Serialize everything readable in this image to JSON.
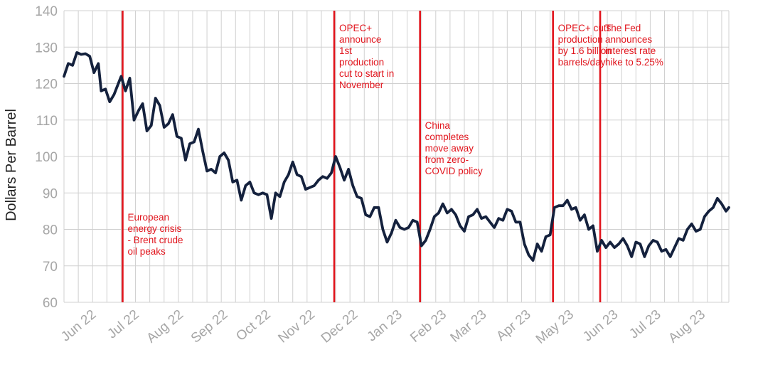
{
  "chart_data": {
    "type": "line",
    "title": "",
    "xlabel": "",
    "ylabel": "Dollars Per Barrel",
    "ylim": [
      60,
      140
    ],
    "yticks": [
      60,
      70,
      80,
      90,
      100,
      110,
      120,
      130,
      140
    ],
    "grid": true,
    "x_range": [
      "2022-05-23",
      "2023-08-31"
    ],
    "x_ticks": [
      {
        "label": "Jun 22",
        "date": "2022-06-15"
      },
      {
        "label": "Jul 22",
        "date": "2022-07-15"
      },
      {
        "label": "Aug 22",
        "date": "2022-08-15"
      },
      {
        "label": "Sep 22",
        "date": "2022-09-15"
      },
      {
        "label": "Oct 22",
        "date": "2022-10-15"
      },
      {
        "label": "Nov 22",
        "date": "2022-11-15"
      },
      {
        "label": "Dec 22",
        "date": "2022-12-15"
      },
      {
        "label": "Jan 23",
        "date": "2023-01-15"
      },
      {
        "label": "Feb 23",
        "date": "2023-02-15"
      },
      {
        "label": "Mar 23",
        "date": "2023-03-15"
      },
      {
        "label": "Apr 23",
        "date": "2023-04-15"
      },
      {
        "label": "May 23",
        "date": "2023-05-15"
      },
      {
        "label": "Jun 23",
        "date": "2023-06-15"
      },
      {
        "label": "Jul 23",
        "date": "2023-07-15"
      },
      {
        "label": "Aug 23",
        "date": "2023-08-15"
      }
    ],
    "series": [
      {
        "color": "#14213d",
        "points": [
          [
            "2022-05-23",
            122.0
          ],
          [
            "2022-05-26",
            125.5
          ],
          [
            "2022-05-29",
            125.0
          ],
          [
            "2022-06-01",
            128.5
          ],
          [
            "2022-06-04",
            128.0
          ],
          [
            "2022-06-07",
            128.2
          ],
          [
            "2022-06-10",
            127.5
          ],
          [
            "2022-06-13",
            123.0
          ],
          [
            "2022-06-16",
            125.5
          ],
          [
            "2022-06-18",
            118.0
          ],
          [
            "2022-06-21",
            118.5
          ],
          [
            "2022-06-24",
            115.0
          ],
          [
            "2022-06-27",
            117.0
          ],
          [
            "2022-06-30",
            120.0
          ],
          [
            "2022-07-02",
            122.0
          ],
          [
            "2022-07-05",
            118.0
          ],
          [
            "2022-07-08",
            121.5
          ],
          [
            "2022-07-11",
            110.0
          ],
          [
            "2022-07-14",
            112.5
          ],
          [
            "2022-07-17",
            114.5
          ],
          [
            "2022-07-20",
            107.0
          ],
          [
            "2022-07-23",
            108.5
          ],
          [
            "2022-07-26",
            116.0
          ],
          [
            "2022-07-29",
            114.0
          ],
          [
            "2022-08-01",
            108.0
          ],
          [
            "2022-08-04",
            109.0
          ],
          [
            "2022-08-07",
            111.5
          ],
          [
            "2022-08-10",
            105.5
          ],
          [
            "2022-08-13",
            105.0
          ],
          [
            "2022-08-16",
            99.0
          ],
          [
            "2022-08-19",
            103.5
          ],
          [
            "2022-08-22",
            104.0
          ],
          [
            "2022-08-25",
            107.5
          ],
          [
            "2022-08-28",
            101.5
          ],
          [
            "2022-08-31",
            96.0
          ],
          [
            "2022-09-03",
            96.5
          ],
          [
            "2022-09-06",
            95.5
          ],
          [
            "2022-09-09",
            100.0
          ],
          [
            "2022-09-12",
            101.0
          ],
          [
            "2022-09-15",
            99.0
          ],
          [
            "2022-09-18",
            93.0
          ],
          [
            "2022-09-21",
            93.5
          ],
          [
            "2022-09-24",
            88.0
          ],
          [
            "2022-09-27",
            92.0
          ],
          [
            "2022-09-30",
            93.0
          ],
          [
            "2022-10-03",
            90.0
          ],
          [
            "2022-10-06",
            89.5
          ],
          [
            "2022-10-09",
            90.0
          ],
          [
            "2022-10-12",
            89.5
          ],
          [
            "2022-10-15",
            83.0
          ],
          [
            "2022-10-18",
            90.0
          ],
          [
            "2022-10-21",
            89.0
          ],
          [
            "2022-10-24",
            93.0
          ],
          [
            "2022-10-27",
            95.0
          ],
          [
            "2022-10-30",
            98.5
          ],
          [
            "2022-11-02",
            95.0
          ],
          [
            "2022-11-05",
            94.5
          ],
          [
            "2022-11-08",
            91.0
          ],
          [
            "2022-11-11",
            91.5
          ],
          [
            "2022-11-14",
            92.0
          ],
          [
            "2022-11-17",
            93.5
          ],
          [
            "2022-11-20",
            94.5
          ],
          [
            "2022-11-23",
            94.0
          ],
          [
            "2022-11-26",
            95.5
          ],
          [
            "2022-11-29",
            100.0
          ],
          [
            "2022-12-02",
            97.0
          ],
          [
            "2022-12-05",
            93.5
          ],
          [
            "2022-12-08",
            96.5
          ],
          [
            "2022-12-11",
            92.0
          ],
          [
            "2022-12-14",
            89.0
          ],
          [
            "2022-12-17",
            88.5
          ],
          [
            "2022-12-20",
            84.0
          ],
          [
            "2022-12-23",
            83.5
          ],
          [
            "2022-12-26",
            86.0
          ],
          [
            "2022-12-29",
            86.0
          ],
          [
            "2023-01-01",
            80.0
          ],
          [
            "2023-01-04",
            76.5
          ],
          [
            "2023-01-07",
            79.0
          ],
          [
            "2023-01-10",
            82.5
          ],
          [
            "2023-01-13",
            80.5
          ],
          [
            "2023-01-16",
            80.0
          ],
          [
            "2023-01-19",
            80.5
          ],
          [
            "2023-01-22",
            82.5
          ],
          [
            "2023-01-25",
            82.0
          ],
          [
            "2023-01-28",
            75.5
          ],
          [
            "2023-01-31",
            77.0
          ],
          [
            "2023-02-03",
            80.0
          ],
          [
            "2023-02-06",
            83.5
          ],
          [
            "2023-02-09",
            84.5
          ],
          [
            "2023-02-12",
            87.0
          ],
          [
            "2023-02-15",
            84.5
          ],
          [
            "2023-02-18",
            85.5
          ],
          [
            "2023-02-21",
            84.0
          ],
          [
            "2023-02-24",
            81.0
          ],
          [
            "2023-02-27",
            79.5
          ],
          [
            "2023-03-02",
            83.5
          ],
          [
            "2023-03-05",
            84.0
          ],
          [
            "2023-03-08",
            85.5
          ],
          [
            "2023-03-11",
            83.0
          ],
          [
            "2023-03-14",
            83.5
          ],
          [
            "2023-03-17",
            82.0
          ],
          [
            "2023-03-20",
            80.5
          ],
          [
            "2023-03-23",
            83.0
          ],
          [
            "2023-03-26",
            82.5
          ],
          [
            "2023-03-29",
            85.5
          ],
          [
            "2023-04-01",
            85.0
          ],
          [
            "2023-04-04",
            82.0
          ],
          [
            "2023-04-07",
            82.0
          ],
          [
            "2023-04-10",
            76.0
          ],
          [
            "2023-04-13",
            73.0
          ],
          [
            "2023-04-16",
            71.5
          ],
          [
            "2023-04-19",
            76.0
          ],
          [
            "2023-04-22",
            74.0
          ],
          [
            "2023-04-25",
            78.0
          ],
          [
            "2023-04-28",
            78.5
          ],
          [
            "2023-05-01",
            86.0
          ],
          [
            "2023-05-04",
            86.5
          ],
          [
            "2023-05-07",
            86.5
          ],
          [
            "2023-05-10",
            88.0
          ],
          [
            "2023-05-13",
            85.5
          ],
          [
            "2023-05-16",
            86.0
          ],
          [
            "2023-05-19",
            82.5
          ],
          [
            "2023-05-22",
            84.0
          ],
          [
            "2023-05-25",
            80.0
          ],
          [
            "2023-05-28",
            81.0
          ],
          [
            "2023-05-31",
            74.0
          ],
          [
            "2023-06-03",
            77.0
          ],
          [
            "2023-06-06",
            75.0
          ],
          [
            "2023-06-09",
            76.5
          ],
          [
            "2023-06-12",
            75.0
          ],
          [
            "2023-06-15",
            76.0
          ],
          [
            "2023-06-18",
            77.5
          ],
          [
            "2023-06-21",
            75.5
          ],
          [
            "2023-06-24",
            72.5
          ],
          [
            "2023-06-27",
            76.5
          ],
          [
            "2023-06-30",
            76.0
          ],
          [
            "2023-07-03",
            72.5
          ],
          [
            "2023-07-06",
            75.5
          ],
          [
            "2023-07-09",
            77.0
          ],
          [
            "2023-07-12",
            76.5
          ],
          [
            "2023-07-15",
            74.0
          ],
          [
            "2023-07-18",
            74.5
          ],
          [
            "2023-07-21",
            72.5
          ],
          [
            "2023-07-24",
            75.0
          ],
          [
            "2023-07-27",
            77.5
          ],
          [
            "2023-07-30",
            77.0
          ],
          [
            "2023-08-02",
            80.0
          ],
          [
            "2023-08-05",
            81.5
          ],
          [
            "2023-08-08",
            79.5
          ],
          [
            "2023-08-11",
            80.0
          ],
          [
            "2023-08-14",
            83.5
          ],
          [
            "2023-08-17",
            85.0
          ],
          [
            "2023-08-20",
            86.0
          ],
          [
            "2023-08-23",
            88.5
          ],
          [
            "2023-08-26",
            87.0
          ],
          [
            "2023-08-29",
            85.0
          ],
          [
            "2023-08-31",
            86.0
          ]
        ]
      }
    ],
    "annotations": [
      {
        "date": "2022-07-03",
        "lines": [
          "European",
          "energy crisis",
          "- Brent crude",
          "oil peaks"
        ],
        "text_pos": "bottom"
      },
      {
        "date": "2022-11-28",
        "lines": [
          "OPEC+",
          "announce",
          "1st",
          "production",
          "cut to start in",
          "November"
        ],
        "text_pos": "top"
      },
      {
        "date": "2023-01-27",
        "lines": [
          "China",
          "completes",
          "move away",
          "from zero-",
          "COVID policy"
        ],
        "text_pos": "middle"
      },
      {
        "date": "2023-04-30",
        "lines": [
          "OPEC+ cuts",
          "production",
          "by 1.6 billion",
          "barrels/day"
        ],
        "text_pos": "top"
      },
      {
        "date": "2023-06-02",
        "lines": [
          "The Fed",
          "announces",
          "interest rate",
          "hike to 5.25%"
        ],
        "text_pos": "top"
      }
    ],
    "annotation_color": "#e1141c"
  }
}
